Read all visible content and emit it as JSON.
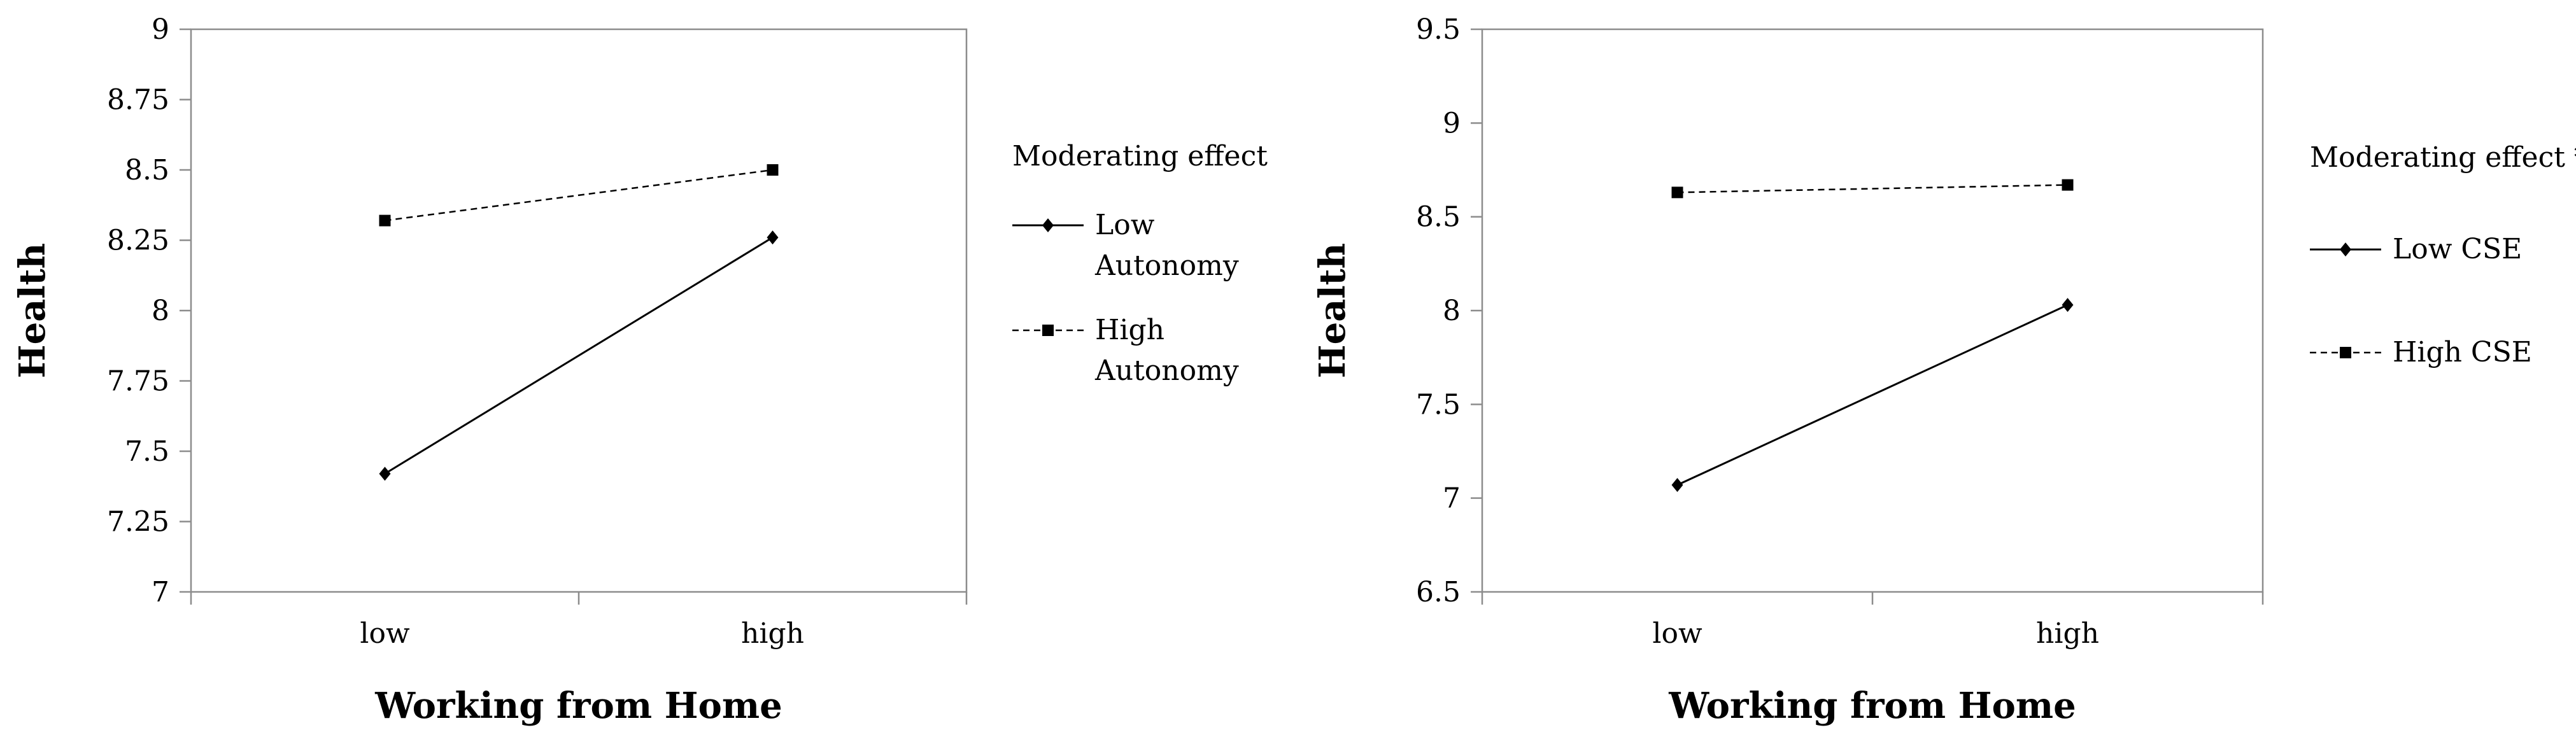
{
  "chart_data": [
    {
      "type": "line",
      "categories": [
        "low",
        "high"
      ],
      "xlabel": "Working from Home",
      "ylabel": "Health",
      "ylim": [
        7,
        9
      ],
      "yticks": [
        "7",
        "7.25",
        "7.5",
        "7.75",
        "8",
        "8.25",
        "8.5",
        "8.75",
        "9"
      ],
      "legend_title": "Moderating effect",
      "legend_position": "right",
      "grid": false,
      "series": [
        {
          "name": "Low Autonomy",
          "name_lines": [
            "Low",
            "Autonomy"
          ],
          "values": [
            7.42,
            8.26
          ],
          "line_style": "solid",
          "marker": "diamond"
        },
        {
          "name": "High Autonomy",
          "name_lines": [
            "High",
            "Autonomy"
          ],
          "values": [
            8.32,
            8.5
          ],
          "line_style": "dashed",
          "marker": "square"
        }
      ]
    },
    {
      "type": "line",
      "categories": [
        "low",
        "high"
      ],
      "xlabel": "Working from Home",
      "ylabel": "Health",
      "ylim": [
        6.5,
        9.5
      ],
      "yticks": [
        "6.5",
        "7",
        "7.5",
        "8",
        "8.5",
        "9",
        "9.5"
      ],
      "legend_title": "Moderating effect *",
      "legend_position": "right",
      "grid": false,
      "series": [
        {
          "name": "Low CSE",
          "name_lines": [
            "Low CSE"
          ],
          "values": [
            7.07,
            8.03
          ],
          "line_style": "solid",
          "marker": "diamond"
        },
        {
          "name": "High CSE",
          "name_lines": [
            "High CSE"
          ],
          "values": [
            8.63,
            8.67
          ],
          "line_style": "dashed",
          "marker": "square"
        }
      ]
    }
  ]
}
